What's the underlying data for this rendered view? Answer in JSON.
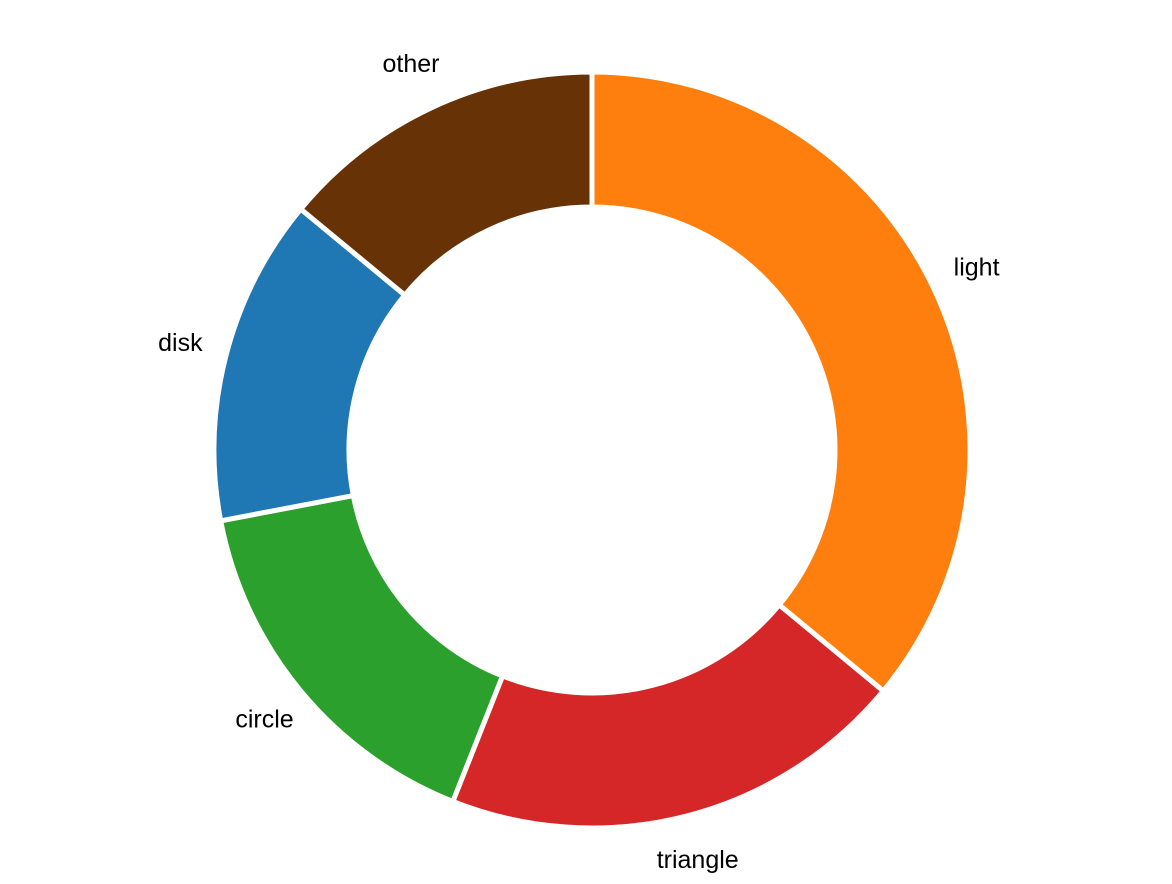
{
  "chart_data": {
    "type": "pie",
    "variant": "donut",
    "title": "",
    "start_angle": "12 o'clock, clockwise",
    "categories": [
      "light",
      "triangle",
      "circle",
      "disk",
      "other"
    ],
    "values": [
      36,
      20,
      16,
      14,
      14
    ],
    "colors": [
      "#ff7f0e",
      "#d62728",
      "#2ca02c",
      "#1f77b4",
      "#673306"
    ],
    "series": [
      {
        "values": [
          36,
          20,
          16,
          14,
          14
        ]
      }
    ],
    "legend": "none",
    "labels": "outside each slice"
  }
}
